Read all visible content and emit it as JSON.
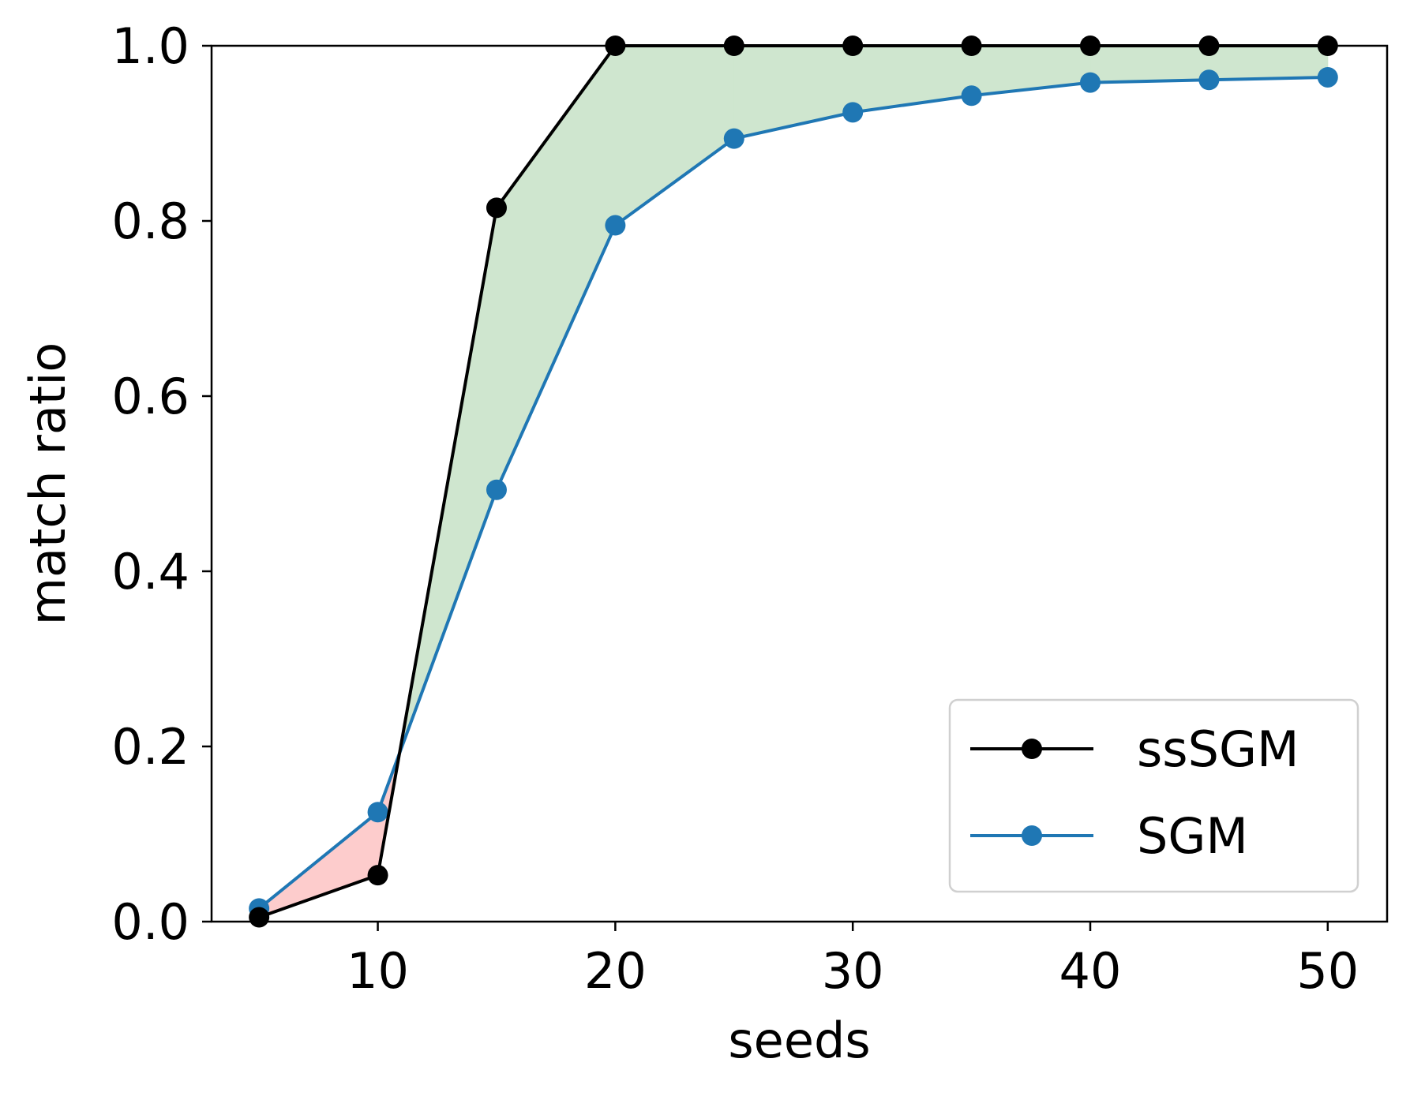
{
  "chart_data": {
    "type": "line",
    "xlabel": "seeds",
    "ylabel": "match ratio",
    "xlim": [
      3,
      52.5
    ],
    "ylim": [
      0.0,
      1.0
    ],
    "xticks": [
      10,
      20,
      30,
      40,
      50
    ],
    "xtick_labels": [
      "10",
      "20",
      "30",
      "40",
      "50"
    ],
    "yticks": [
      0.0,
      0.2,
      0.4,
      0.6,
      0.8,
      1.0
    ],
    "ytick_labels": [
      "0.0",
      "0.2",
      "0.4",
      "0.6",
      "0.8",
      "1.0"
    ],
    "grid": false,
    "legend_position": "lower-right",
    "x": [
      5,
      10,
      15,
      20,
      25,
      30,
      35,
      40,
      45,
      50
    ],
    "series": [
      {
        "name": "ssSGM",
        "color": "#000000",
        "values": [
          0.005,
          0.053,
          0.815,
          1.0,
          1.0,
          1.0,
          1.0,
          1.0,
          1.0,
          1.0
        ]
      },
      {
        "name": "SGM",
        "color": "#1f77b4",
        "values": [
          0.015,
          0.125,
          0.493,
          0.795,
          0.894,
          0.924,
          0.943,
          0.958,
          0.961,
          0.964
        ]
      }
    ],
    "fill_between": {
      "positive_color": "#cfe6cf",
      "negative_color": "#fdcccc"
    }
  }
}
